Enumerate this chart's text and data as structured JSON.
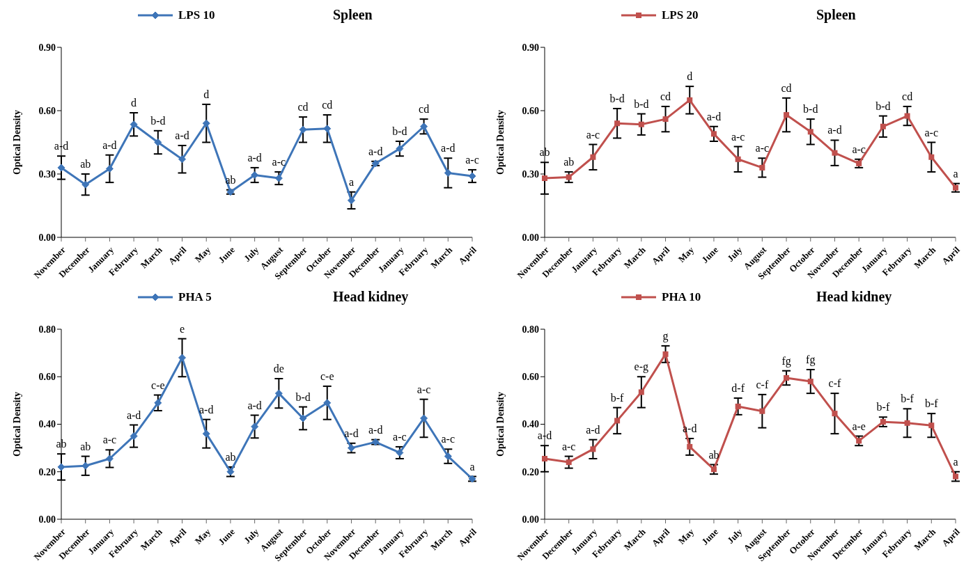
{
  "chart_data": [
    {
      "type": "line",
      "title": "Spleen",
      "ylabel": "Optical Density",
      "categories": [
        "November",
        "December",
        "January",
        "February",
        "March",
        "April",
        "May",
        "June",
        "July",
        "August",
        "September",
        "October",
        "November",
        "December",
        "January",
        "February",
        "March",
        "April"
      ],
      "ylim": [
        0,
        0.9
      ],
      "yticks": [
        {
          "value": 0,
          "label": "0.00"
        },
        {
          "value": 0.3,
          "label": "0.30"
        },
        {
          "value": 0.6,
          "label": "0.60"
        },
        {
          "value": 0.9,
          "label": "0.90"
        }
      ],
      "grid": false,
      "legend": "top",
      "marker": "diamond",
      "line_style": "solid",
      "series": [
        {
          "name": "LPS 10",
          "color": "#3e75b8",
          "values": [
            0.33,
            0.25,
            0.325,
            0.535,
            0.45,
            0.37,
            0.54,
            0.215,
            0.295,
            0.28,
            0.51,
            0.515,
            0.175,
            0.35,
            0.42,
            0.525,
            0.305,
            0.29
          ],
          "errors": [
            0.055,
            0.05,
            0.065,
            0.055,
            0.055,
            0.065,
            0.09,
            0.01,
            0.035,
            0.03,
            0.06,
            0.065,
            0.04,
            0.01,
            0.035,
            0.035,
            0.07,
            0.03
          ],
          "value_labels": [
            "a-d",
            "ab",
            "a-d",
            "d",
            "b-d",
            "a-d",
            "d",
            "ab",
            "a-d",
            "a-c",
            "cd",
            "cd",
            "a",
            "a-d",
            "b-d",
            "cd",
            "a-d",
            "a-c"
          ]
        }
      ]
    },
    {
      "type": "line",
      "title": "Spleen",
      "ylabel": "Optical Density",
      "categories": [
        "November",
        "December",
        "January",
        "February",
        "March",
        "April",
        "May",
        "June",
        "July",
        "August",
        "September",
        "October",
        "November",
        "December",
        "January",
        "February",
        "March",
        "April"
      ],
      "ylim": [
        0,
        0.9
      ],
      "yticks": [
        {
          "value": 0,
          "label": "0.00"
        },
        {
          "value": 0.3,
          "label": "0.30"
        },
        {
          "value": 0.6,
          "label": "0.60"
        },
        {
          "value": 0.9,
          "label": "0.90"
        }
      ],
      "grid": false,
      "legend": "top",
      "marker": "square",
      "line_style": "solid",
      "series": [
        {
          "name": "LPS 20",
          "color": "#c0504d",
          "values": [
            0.28,
            0.285,
            0.38,
            0.54,
            0.535,
            0.56,
            0.65,
            0.49,
            0.37,
            0.33,
            0.58,
            0.5,
            0.4,
            0.35,
            0.525,
            0.575,
            0.38,
            0.235
          ],
          "errors": [
            0.075,
            0.025,
            0.06,
            0.07,
            0.05,
            0.06,
            0.065,
            0.035,
            0.06,
            0.045,
            0.08,
            0.06,
            0.06,
            0.02,
            0.05,
            0.045,
            0.07,
            0.02
          ],
          "value_labels": [
            "ab",
            "ab",
            "a-c",
            "b-d",
            "b-d",
            "cd",
            "d",
            "a-d",
            "a-c",
            "a-c",
            "cd",
            "b-d",
            "a-d",
            "a-c",
            "b-d",
            "cd",
            "a-c",
            "a"
          ]
        }
      ]
    },
    {
      "type": "line",
      "title": "Head kidney",
      "ylabel": "Optical Density",
      "categories": [
        "November",
        "December",
        "January",
        "February",
        "March",
        "April",
        "May",
        "June",
        "July",
        "August",
        "September",
        "October",
        "November",
        "December",
        "January",
        "February",
        "March",
        "April"
      ],
      "ylim": [
        0,
        0.8
      ],
      "yticks": [
        {
          "value": 0,
          "label": "0.00"
        },
        {
          "value": 0.2,
          "label": "0.20"
        },
        {
          "value": 0.4,
          "label": "0.40"
        },
        {
          "value": 0.6,
          "label": "0.60"
        },
        {
          "value": 0.8,
          "label": "0.80"
        }
      ],
      "grid": false,
      "legend": "top",
      "marker": "diamond",
      "line_style": "solid",
      "series": [
        {
          "name": "PHA 5",
          "color": "#3e75b8",
          "values": [
            0.22,
            0.225,
            0.255,
            0.35,
            0.49,
            0.68,
            0.36,
            0.2,
            0.39,
            0.53,
            0.425,
            0.49,
            0.3,
            0.325,
            0.28,
            0.425,
            0.265,
            0.17
          ],
          "errors": [
            0.055,
            0.04,
            0.037,
            0.047,
            0.033,
            0.08,
            0.06,
            0.02,
            0.048,
            0.062,
            0.048,
            0.07,
            0.02,
            0.01,
            0.025,
            0.08,
            0.03,
            0.01
          ],
          "value_labels": [
            "ab",
            "ab",
            "a-c",
            "a-d",
            "c-e",
            "e",
            "a-d",
            "ab",
            "a-d",
            "de",
            "b-d",
            "c-e",
            "a-d",
            "a-d",
            "a-c",
            "a-c",
            "a-c",
            "a"
          ]
        }
      ]
    },
    {
      "type": "line",
      "title": "Head kidney",
      "ylabel": "Optical Density",
      "categories": [
        "November",
        "December",
        "January",
        "February",
        "March",
        "April",
        "May",
        "June",
        "July",
        "August",
        "September",
        "October",
        "November",
        "December",
        "January",
        "February",
        "March",
        "April"
      ],
      "ylim": [
        0,
        0.8
      ],
      "yticks": [
        {
          "value": 0,
          "label": "0.00"
        },
        {
          "value": 0.2,
          "label": "0.20"
        },
        {
          "value": 0.4,
          "label": "0.40"
        },
        {
          "value": 0.6,
          "label": "0.60"
        },
        {
          "value": 0.8,
          "label": "0.80"
        }
      ],
      "grid": false,
      "legend": "top",
      "marker": "square",
      "line_style": "solid",
      "series": [
        {
          "name": "PHA 10",
          "color": "#c0504d",
          "values": [
            0.255,
            0.24,
            0.295,
            0.415,
            0.535,
            0.695,
            0.305,
            0.21,
            0.475,
            0.455,
            0.595,
            0.58,
            0.445,
            0.33,
            0.41,
            0.405,
            0.395,
            0.18
          ],
          "errors": [
            0.055,
            0.025,
            0.04,
            0.055,
            0.065,
            0.035,
            0.035,
            0.02,
            0.035,
            0.07,
            0.03,
            0.05,
            0.085,
            0.02,
            0.02,
            0.06,
            0.05,
            0.02
          ],
          "value_labels": [
            "a-d",
            "a-c",
            "a-d",
            "b-f",
            "e-g",
            "g",
            "a-d",
            "ab",
            "d-f",
            "c-f",
            "fg",
            "fg",
            "c-f",
            "a-e",
            "b-f",
            "b-f",
            "b-f",
            "a"
          ]
        }
      ]
    }
  ]
}
